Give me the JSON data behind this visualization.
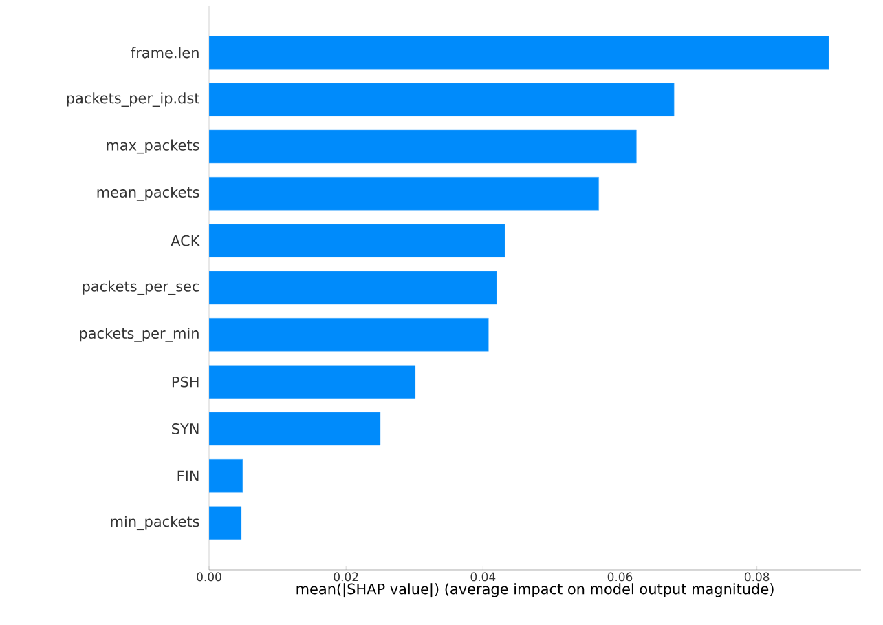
{
  "chart_data": {
    "type": "bar",
    "orientation": "horizontal",
    "xlabel": "mean(|SHAP value|) (average impact on model output magnitude)",
    "categories": [
      "frame.len",
      "packets_per_ip.dst",
      "max_packets",
      "mean_packets",
      "ACK",
      "packets_per_sec",
      "packets_per_min",
      "PSH",
      "SYN",
      "FIN",
      "min_packets"
    ],
    "values": [
      0.0905,
      0.0679,
      0.0624,
      0.0569,
      0.0432,
      0.042,
      0.0408,
      0.0301,
      0.025,
      0.0049,
      0.0047
    ],
    "color": "#008bfb",
    "xlim": [
      0,
      0.0952
    ],
    "xticks": [
      {
        "value": 0,
        "label": "0.00"
      },
      {
        "value": 0.02,
        "label": "0.02"
      },
      {
        "value": 0.04,
        "label": "0.04"
      },
      {
        "value": 0.06,
        "label": "0.06"
      },
      {
        "value": 0.08,
        "label": "0.08"
      }
    ]
  }
}
